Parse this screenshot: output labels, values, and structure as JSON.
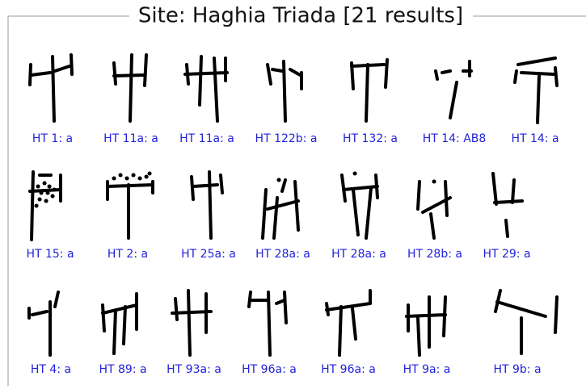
{
  "title": "Site: Haghia Triada [21 results]",
  "items": [
    {
      "label": "HT 1: a"
    },
    {
      "label": "HT 11a: a"
    },
    {
      "label": "HT 11a: a"
    },
    {
      "label": "HT 122b: a"
    },
    {
      "label": "HT 132: a"
    },
    {
      "label": "HT 14: AB8"
    },
    {
      "label": "HT 14: a"
    },
    {
      "label": "HT 15: a"
    },
    {
      "label": "HT 2: a"
    },
    {
      "label": "HT 25a: a"
    },
    {
      "label": "HT 28a: a"
    },
    {
      "label": "HT 28a: a"
    },
    {
      "label": "HT 28b: a"
    },
    {
      "label": "HT 29: a"
    },
    {
      "label": "HT 4: a"
    },
    {
      "label": "HT 89: a"
    },
    {
      "label": "HT 93a: a"
    },
    {
      "label": "HT 96a: a"
    },
    {
      "label": "HT 96a: a"
    },
    {
      "label": "HT 9a: a"
    },
    {
      "label": "HT 9b: a"
    }
  ]
}
